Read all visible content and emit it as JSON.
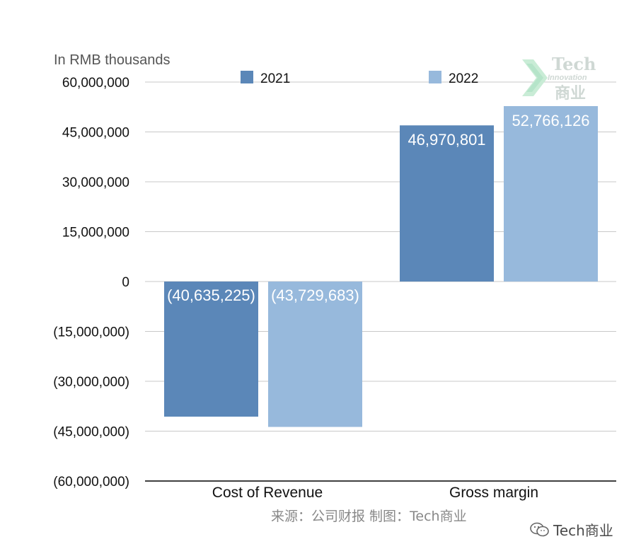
{
  "chart_data": {
    "type": "bar",
    "unit_label": "In RMB thousands",
    "categories": [
      "Cost of Revenue",
      "Gross margin"
    ],
    "series": [
      {
        "name": "2021",
        "color": "#5b87b8",
        "values": [
          -40635225,
          46970801
        ],
        "labels": [
          "(40,635,225)",
          "46,970,801"
        ]
      },
      {
        "name": "2022",
        "color": "#97b9dc",
        "values": [
          -43729683,
          52766126
        ],
        "labels": [
          "(43,729,683)",
          "52,766,126"
        ]
      }
    ],
    "ylim": [
      -60000000,
      60000000
    ],
    "yticks": [
      60000000,
      45000000,
      30000000,
      15000000,
      0,
      -15000000,
      -30000000,
      -45000000,
      -60000000
    ],
    "ytick_labels": [
      "60,000,000",
      "45,000,000",
      "30,000,000",
      "15,000,000",
      "0",
      "(15,000,000)",
      "(30,000,000)",
      "(45,000,000)",
      "(60,000,000)"
    ],
    "grid": true,
    "legend_position": "top"
  },
  "source_text": "来源：公司财报 制图：Tech商业",
  "logo": {
    "line1": "Tech",
    "line2": "Innovation",
    "line3": "商业"
  },
  "watermark_text": "Tech商业"
}
